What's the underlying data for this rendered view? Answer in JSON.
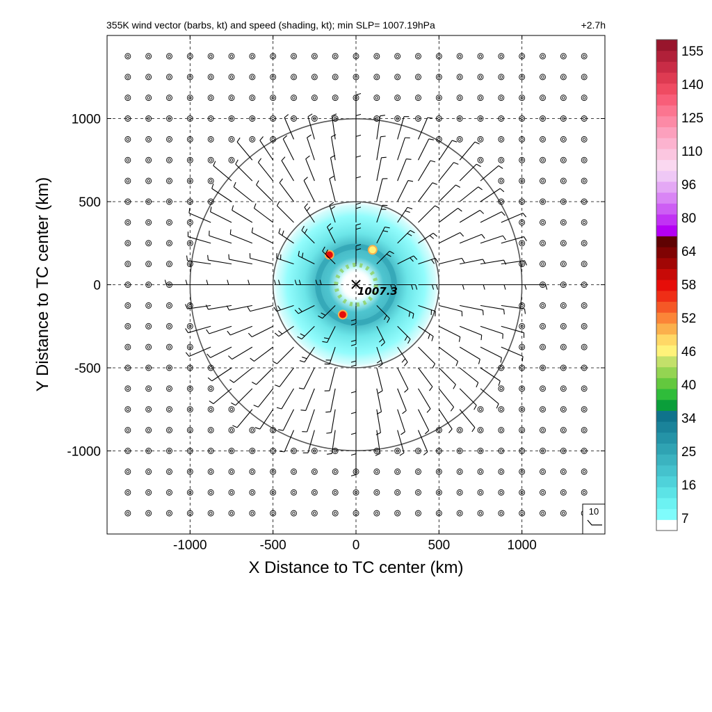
{
  "chart_data": {
    "type": "heatmap",
    "title": "355K wind vector (barbs, kt) and speed (shading, kt); min SLP= 1007.19hPa",
    "time_label": "+2.7h",
    "xlabel": "X Distance to TC center (km)",
    "ylabel": "Y Distance to TC center (km)",
    "xlim": [
      -1500,
      1500
    ],
    "ylim": [
      -1500,
      1500
    ],
    "x_ticks": [
      -1000,
      -500,
      0,
      500,
      1000
    ],
    "y_ticks": [
      -1000,
      -500,
      0,
      500,
      1000
    ],
    "x_tick_labels": [
      "-1000",
      "-500",
      "0",
      "500",
      "1000"
    ],
    "y_tick_labels": [
      "-1000",
      "-500",
      "0",
      "500",
      "1000"
    ],
    "grid": true,
    "range_rings_km": [
      500,
      1000
    ],
    "center": {
      "x": 0,
      "y": 0,
      "label": "1007.3"
    },
    "wind_field": {
      "barb_spacing_km": 125,
      "calm_outside_km": 1000,
      "inner_core_km": 500,
      "outer_speed_kt": 10,
      "core_speed_kt": 25
    },
    "speed_shading": {
      "ring_inner_km": 60,
      "ring_outer_km": 520,
      "band_radius_km": 230,
      "hotspots": [
        {
          "x": -160,
          "y": 180,
          "speed_kt": 58
        },
        {
          "x": -80,
          "y": -180,
          "speed_kt": 55
        },
        {
          "x": 100,
          "y": 210,
          "speed_kt": 46
        }
      ]
    },
    "reference_barb": {
      "label": "10",
      "speed_kt": 10
    },
    "colorbar": {
      "labels": [
        "155",
        "140",
        "125",
        "110",
        "96",
        "80",
        "64",
        "58",
        "52",
        "46",
        "40",
        "34",
        "25",
        "16",
        "7"
      ],
      "colors": [
        "#ffffff",
        "#7ffcfc",
        "#6cf2f2",
        "#5ce3e6",
        "#4fd2da",
        "#45c2cd",
        "#3bb3c0",
        "#2fa3b3",
        "#2493a7",
        "#1a839a",
        "#0f738c",
        "#0a9e3a",
        "#2fbc3a",
        "#63c83e",
        "#94d452",
        "#c3e06a",
        "#fff27a",
        "#ffd866",
        "#fbb04c",
        "#fb8538",
        "#f55826",
        "#ef2e16",
        "#e60d09",
        "#c70a07",
        "#a10605",
        "#800303",
        "#5f0202",
        "#b400f4",
        "#c132f4",
        "#cd5ef4",
        "#d985f5",
        "#e4a8f5",
        "#efc8f6",
        "#fad8f0",
        "#fbc6e0",
        "#fcb3cf",
        "#fca0bd",
        "#fc8aa6",
        "#fb7590",
        "#f85e79",
        "#ef4b62",
        "#de3b52",
        "#c92c46",
        "#b12039",
        "#98152c"
      ]
    }
  }
}
